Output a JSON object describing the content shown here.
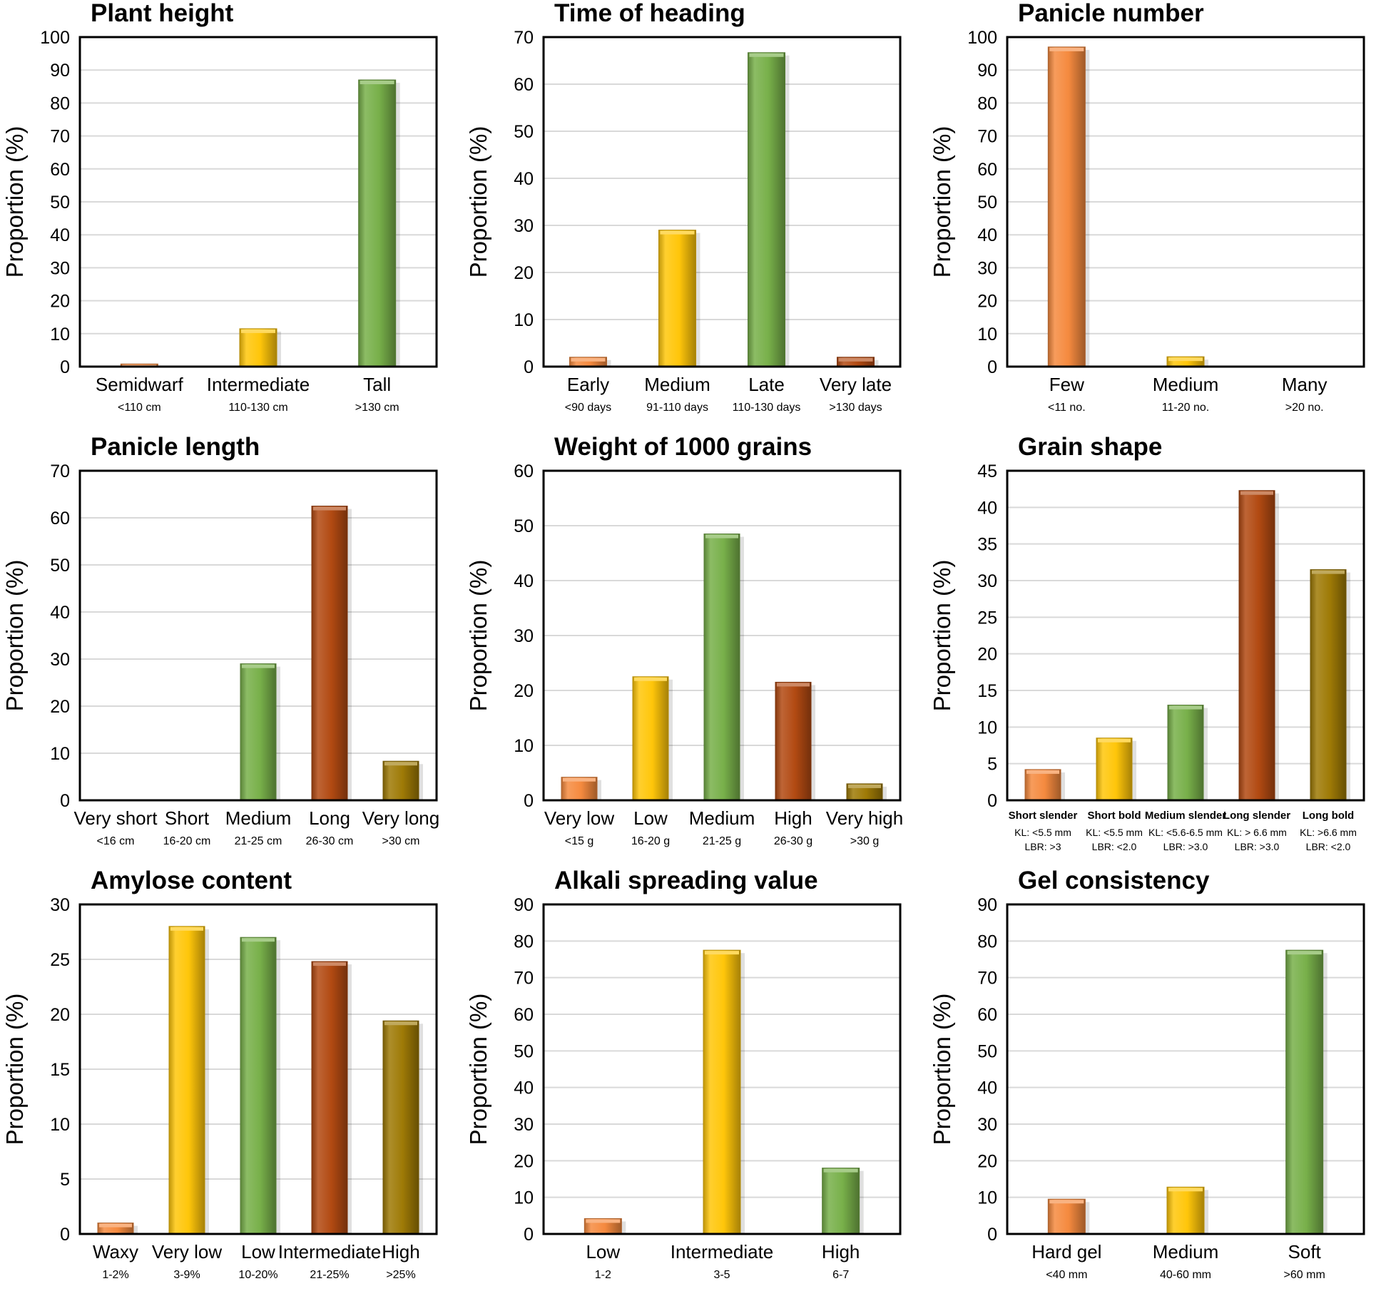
{
  "colors": {
    "orange": "#F58A3F",
    "yellow": "#FFC60A",
    "green": "#78B04A",
    "brown": "#B24A12",
    "olive": "#9E7A06",
    "gridline": "#D9D9D9",
    "frame": "#000000"
  },
  "chart_data": [
    {
      "type": "bar",
      "title": "Plant height",
      "ylabel": "Proportion (%)",
      "ylim": [
        0,
        100
      ],
      "yticks": [
        "0",
        "10",
        "20",
        "30",
        "40",
        "50",
        "60",
        "70",
        "80",
        "90",
        "100"
      ],
      "categories": [
        "Semidwarf",
        "Intermediate",
        "Tall"
      ],
      "sublabels": [
        "<110 cm",
        "110-130 cm",
        ">130 cm"
      ],
      "values": [
        0.8,
        11.5,
        87
      ],
      "colors": [
        "orange",
        "yellow",
        "green"
      ]
    },
    {
      "type": "bar",
      "title": "Time of heading",
      "ylabel": "Proportion (%)",
      "ylim": [
        0,
        70
      ],
      "yticks": [
        "0",
        "10",
        "20",
        "30",
        "40",
        "50",
        "60",
        "70"
      ],
      "categories": [
        "Early",
        "Medium",
        "Late",
        "Very late"
      ],
      "sublabels": [
        "<90 days",
        "91-110 days",
        "110-130 days",
        ">130 days"
      ],
      "values": [
        2,
        29,
        66.7,
        2
      ],
      "colors": [
        "orange",
        "yellow",
        "green",
        "brown"
      ]
    },
    {
      "type": "bar",
      "title": "Panicle number",
      "ylabel": "Proportion (%)",
      "ylim": [
        0,
        100
      ],
      "yticks": [
        "0",
        "10",
        "20",
        "30",
        "40",
        "50",
        "60",
        "70",
        "80",
        "90",
        "100"
      ],
      "categories": [
        "Few",
        "Medium",
        "Many"
      ],
      "sublabels": [
        "<11 no.",
        "11-20 no.",
        ">20 no."
      ],
      "values": [
        97,
        3,
        0
      ],
      "colors": [
        "orange",
        "yellow",
        "green"
      ]
    },
    {
      "type": "bar",
      "title": "Panicle length",
      "ylabel": "Proportion (%)",
      "ylim": [
        0,
        70
      ],
      "yticks": [
        "0",
        "10",
        "20",
        "30",
        "40",
        "50",
        "60",
        "70"
      ],
      "categories": [
        "Very short",
        "Short",
        "Medium",
        "Long",
        "Very long"
      ],
      "sublabels": [
        "<16 cm",
        "16-20 cm",
        "21-25 cm",
        "26-30 cm",
        ">30 cm"
      ],
      "values": [
        0,
        0,
        29,
        62.5,
        8.3
      ],
      "colors": [
        "orange",
        "yellow",
        "green",
        "brown",
        "olive"
      ]
    },
    {
      "type": "bar",
      "title": "Weight of 1000 grains",
      "ylabel": "Proportion (%)",
      "ylim": [
        0,
        60
      ],
      "yticks": [
        "0",
        "10",
        "20",
        "30",
        "40",
        "50",
        "60"
      ],
      "categories": [
        "Very low",
        "Low",
        "Medium",
        "High",
        "Very high"
      ],
      "sublabels": [
        "<15 g",
        "16-20 g",
        "21-25 g",
        "26-30 g",
        ">30 g"
      ],
      "values": [
        4.2,
        22.5,
        48.5,
        21.5,
        3
      ],
      "colors": [
        "orange",
        "yellow",
        "green",
        "brown",
        "olive"
      ]
    },
    {
      "type": "bar",
      "title": "Grain shape",
      "ylabel": "Proportion (%)",
      "ylim": [
        0,
        45
      ],
      "yticks": [
        "0",
        "5",
        "10",
        "15",
        "20",
        "25",
        "30",
        "35",
        "40",
        "45"
      ],
      "categories": [
        "Short slender",
        "Short bold",
        "Medium slender",
        "Long slender",
        "Long bold"
      ],
      "sublabels": [
        "KL: <5.5 mm",
        "KL: <5.5 mm",
        "KL: <5.6-6.5 mm",
        "KL: > 6.6 mm",
        "KL: >6.6 mm"
      ],
      "sublabels2": [
        "LBR: >3",
        "LBR: <2.0",
        "LBR: >3.0",
        "LBR: >3.0",
        "LBR: <2.0"
      ],
      "values": [
        4.2,
        8.5,
        13,
        42.3,
        31.5
      ],
      "colors": [
        "orange",
        "yellow",
        "green",
        "brown",
        "olive"
      ]
    },
    {
      "type": "bar",
      "title": "Amylose content",
      "ylabel": "Proportion (%)",
      "ylim": [
        0,
        30
      ],
      "yticks": [
        "0",
        "5",
        "10",
        "15",
        "20",
        "25",
        "30"
      ],
      "categories": [
        "Waxy",
        "Very low",
        "Low",
        "Intermediate",
        "High"
      ],
      "sublabels": [
        "1-2%",
        "3-9%",
        "10-20%",
        "21-25%",
        ">25%"
      ],
      "values": [
        1,
        28,
        27,
        24.8,
        19.4
      ],
      "colors": [
        "orange",
        "yellow",
        "green",
        "brown",
        "olive"
      ]
    },
    {
      "type": "bar",
      "title": "Alkali spreading value",
      "ylabel": "Proportion (%)",
      "ylim": [
        0,
        90
      ],
      "yticks": [
        "0",
        "10",
        "20",
        "30",
        "40",
        "50",
        "60",
        "70",
        "80",
        "90"
      ],
      "categories": [
        "Low",
        "Intermediate",
        "High"
      ],
      "sublabels": [
        "1-2",
        "3-5",
        "6-7"
      ],
      "values": [
        4.2,
        77.5,
        18
      ],
      "colors": [
        "orange",
        "yellow",
        "green"
      ]
    },
    {
      "type": "bar",
      "title": "Gel consistency",
      "ylabel": "Proportion (%)",
      "ylim": [
        0,
        90
      ],
      "yticks": [
        "0",
        "10",
        "20",
        "30",
        "40",
        "50",
        "60",
        "70",
        "80",
        "90"
      ],
      "categories": [
        "Hard gel",
        "Medium",
        "Soft"
      ],
      "sublabels": [
        "<40 mm",
        "40-60 mm",
        ">60 mm"
      ],
      "values": [
        9.5,
        12.8,
        77.5
      ],
      "colors": [
        "orange",
        "yellow",
        "green"
      ]
    }
  ]
}
